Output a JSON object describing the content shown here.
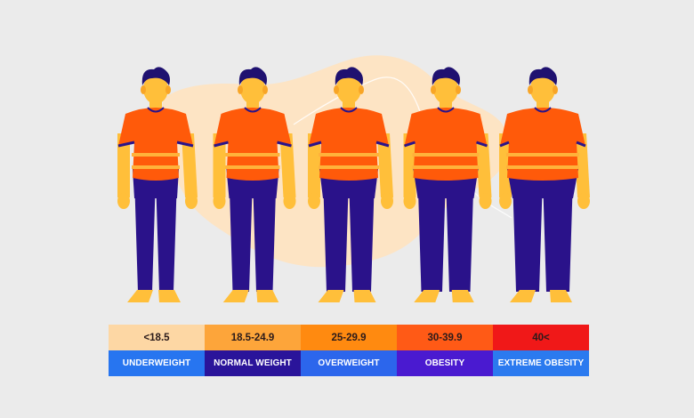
{
  "colors": {
    "background": "#ebebeb",
    "blob": "#fde4c4",
    "shirt": "#ff5a0a",
    "shirt_stripe": "#ffb23a",
    "shirt_trim": "#2a148a",
    "pants": "#2a128a",
    "skin": "#ffbf3a",
    "skin_shadow": "#f8a526",
    "hair": "#1f1170"
  },
  "figures": [
    {
      "name": "underweight",
      "build": 0.0
    },
    {
      "name": "normal-weight",
      "build": 0.25
    },
    {
      "name": "overweight",
      "build": 0.5
    },
    {
      "name": "obesity",
      "build": 0.75
    },
    {
      "name": "extreme-obesity",
      "build": 1.0
    }
  ],
  "categories": [
    {
      "range": "<18.5",
      "label": "UNDERWEIGHT",
      "range_color": "#fdd7a4",
      "label_color": "#2775f0"
    },
    {
      "range": "18.5-24.9",
      "label": "NORMAL WEIGHT",
      "range_color": "#fda53a",
      "label_color": "#2a149a"
    },
    {
      "range": "25-29.9",
      "label": "OVERWEIGHT",
      "range_color": "#ff8a10",
      "label_color": "#2c66ec"
    },
    {
      "range": "30-39.9",
      "label": "OBESITY",
      "range_color": "#ff5a16",
      "label_color": "#4a1ad0"
    },
    {
      "range": "40<",
      "label": "EXTREME OBESITY",
      "range_color": "#f01818",
      "label_color": "#2b7aef"
    }
  ]
}
